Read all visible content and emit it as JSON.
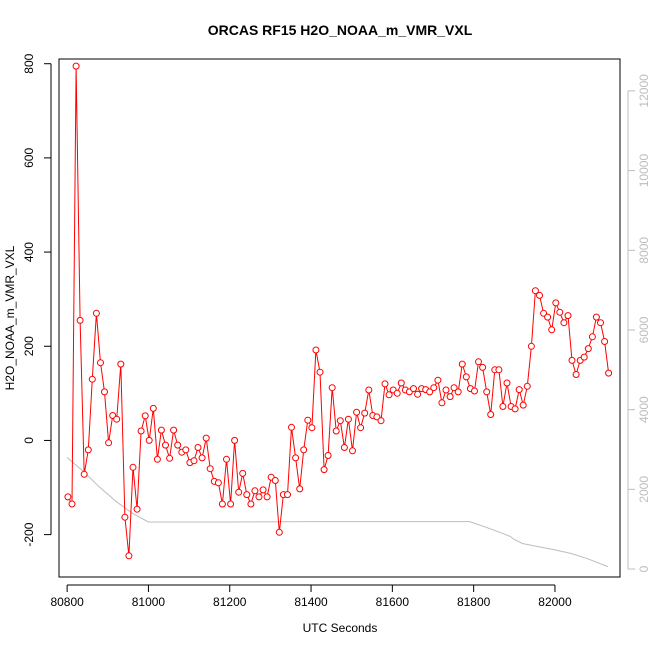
{
  "chart_data": {
    "type": "line",
    "title": "ORCAS RF15 H2O_NOAA_m_VMR_VXL",
    "xlabel": "UTC Seconds",
    "ylabel": "H2O_NOAA_m_VMR_VXL",
    "xlim": [
      80780,
      82160
    ],
    "ylim": [
      -290,
      810
    ],
    "y2lim": [
      -200,
      12800
    ],
    "x_ticks": [
      80800,
      81000,
      81200,
      81400,
      81600,
      81800,
      82000
    ],
    "y_ticks": [
      -200,
      0,
      200,
      400,
      600,
      800
    ],
    "y2_ticks": [
      0,
      2000,
      4000,
      6000,
      8000,
      10000,
      12000
    ],
    "grid": false,
    "colors": {
      "h2o": "#ff0000",
      "altitude": "#bdbdbd",
      "axis": "#000000",
      "axis_right": "#bdbdbd"
    },
    "series": [
      {
        "values": [
          [
            80802,
            -120
          ],
          [
            80812,
            -135
          ],
          [
            80822,
            795
          ],
          [
            80832,
            255
          ],
          [
            80842,
            -72
          ],
          [
            80852,
            -20
          ],
          [
            80862,
            130
          ],
          [
            80872,
            270
          ],
          [
            80882,
            165
          ],
          [
            80892,
            103
          ],
          [
            80902,
            -5
          ],
          [
            80912,
            53
          ],
          [
            80922,
            45
          ],
          [
            80932,
            162
          ],
          [
            80942,
            -163
          ],
          [
            80952,
            -245
          ],
          [
            80962,
            -57
          ],
          [
            80972,
            -146
          ],
          [
            80982,
            20
          ],
          [
            80992,
            52
          ],
          [
            81002,
            0
          ],
          [
            81012,
            68
          ],
          [
            81022,
            -40
          ],
          [
            81032,
            22
          ],
          [
            81042,
            -10
          ],
          [
            81052,
            -38
          ],
          [
            81062,
            22
          ],
          [
            81072,
            -10
          ],
          [
            81082,
            -25
          ],
          [
            81092,
            -20
          ],
          [
            81102,
            -47
          ],
          [
            81112,
            -43
          ],
          [
            81122,
            -15
          ],
          [
            81132,
            -37
          ],
          [
            81142,
            5
          ],
          [
            81152,
            -60
          ],
          [
            81162,
            -87
          ],
          [
            81172,
            -90
          ],
          [
            81182,
            -135
          ],
          [
            81192,
            -40
          ],
          [
            81202,
            -135
          ],
          [
            81212,
            0
          ],
          [
            81222,
            -110
          ],
          [
            81232,
            -70
          ],
          [
            81242,
            -115
          ],
          [
            81252,
            -135
          ],
          [
            81262,
            -107
          ],
          [
            81272,
            -120
          ],
          [
            81282,
            -105
          ],
          [
            81292,
            -120
          ],
          [
            81302,
            -78
          ],
          [
            81312,
            -85
          ],
          [
            81322,
            -195
          ],
          [
            81332,
            -115
          ],
          [
            81342,
            -115
          ],
          [
            81352,
            28
          ],
          [
            81362,
            -37
          ],
          [
            81372,
            -103
          ],
          [
            81382,
            -20
          ],
          [
            81392,
            43
          ],
          [
            81402,
            27
          ],
          [
            81412,
            192
          ],
          [
            81422,
            145
          ],
          [
            81432,
            -62
          ],
          [
            81442,
            -32
          ],
          [
            81452,
            112
          ],
          [
            81462,
            20
          ],
          [
            81472,
            42
          ],
          [
            81482,
            -15
          ],
          [
            81492,
            45
          ],
          [
            81502,
            -22
          ],
          [
            81512,
            60
          ],
          [
            81522,
            27
          ],
          [
            81532,
            58
          ],
          [
            81542,
            107
          ],
          [
            81552,
            53
          ],
          [
            81562,
            50
          ],
          [
            81572,
            42
          ],
          [
            81582,
            120
          ],
          [
            81592,
            97
          ],
          [
            81602,
            107
          ],
          [
            81612,
            100
          ],
          [
            81622,
            122
          ],
          [
            81632,
            107
          ],
          [
            81642,
            103
          ],
          [
            81652,
            110
          ],
          [
            81662,
            98
          ],
          [
            81672,
            110
          ],
          [
            81682,
            108
          ],
          [
            81692,
            103
          ],
          [
            81702,
            112
          ],
          [
            81712,
            128
          ],
          [
            81722,
            80
          ],
          [
            81732,
            107
          ],
          [
            81742,
            93
          ],
          [
            81752,
            112
          ],
          [
            81762,
            103
          ],
          [
            81772,
            162
          ],
          [
            81782,
            135
          ],
          [
            81792,
            110
          ],
          [
            81802,
            105
          ],
          [
            81812,
            167
          ],
          [
            81822,
            155
          ],
          [
            81832,
            103
          ],
          [
            81842,
            55
          ],
          [
            81852,
            150
          ],
          [
            81862,
            150
          ],
          [
            81872,
            72
          ],
          [
            81882,
            122
          ],
          [
            81892,
            72
          ],
          [
            81902,
            67
          ],
          [
            81912,
            108
          ],
          [
            81922,
            75
          ],
          [
            81932,
            115
          ],
          [
            81942,
            200
          ],
          [
            81952,
            318
          ],
          [
            81962,
            308
          ],
          [
            81972,
            270
          ],
          [
            81982,
            262
          ],
          [
            81992,
            235
          ],
          [
            82002,
            292
          ],
          [
            82012,
            272
          ],
          [
            82022,
            250
          ],
          [
            82032,
            265
          ],
          [
            82042,
            170
          ],
          [
            82052,
            140
          ],
          [
            82062,
            170
          ],
          [
            82072,
            177
          ],
          [
            82082,
            195
          ],
          [
            82092,
            220
          ],
          [
            82102,
            262
          ],
          [
            82112,
            250
          ],
          [
            82122,
            210
          ],
          [
            82132,
            143
          ]
        ]
      },
      {
        "axis": "right",
        "values": [
          [
            80800,
            2800
          ],
          [
            80840,
            2450
          ],
          [
            80880,
            2050
          ],
          [
            80920,
            1700
          ],
          [
            80960,
            1400
          ],
          [
            81000,
            1180
          ],
          [
            81200,
            1180
          ],
          [
            81400,
            1190
          ],
          [
            81600,
            1190
          ],
          [
            81790,
            1190
          ],
          [
            81830,
            1050
          ],
          [
            81870,
            900
          ],
          [
            81890,
            820
          ],
          [
            81900,
            740
          ],
          [
            81920,
            640
          ],
          [
            81960,
            560
          ],
          [
            82000,
            480
          ],
          [
            82040,
            390
          ],
          [
            82080,
            260
          ],
          [
            82130,
            60
          ]
        ]
      }
    ]
  }
}
